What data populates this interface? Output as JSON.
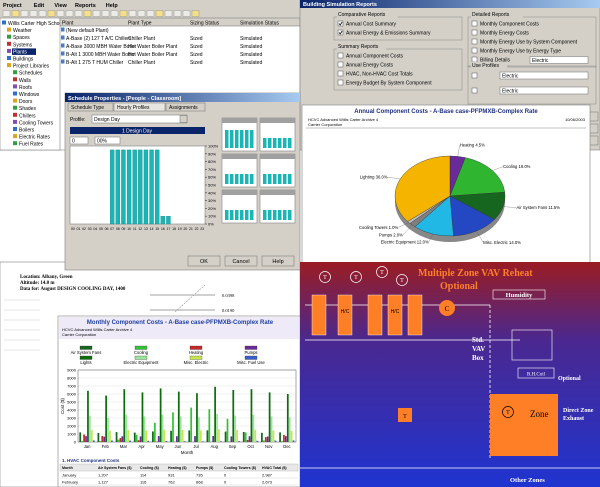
{
  "main_window": {
    "menu": [
      "Project",
      "Edit",
      "View",
      "Reports",
      "Help"
    ],
    "tree": [
      "Willis Carter High School",
      "Weather",
      "Spaces",
      "Systems",
      "Plants",
      "Buildings",
      "Project Libraries",
      "Schedules",
      "Walls",
      "Roofs",
      "Windows",
      "Doors",
      "Shades",
      "Chillers",
      "Cooling Towers",
      "Boilers",
      "Electric Rates",
      "Fuel Rates"
    ],
    "selected_tree_item": 4,
    "columns": [
      "Plant",
      "Plant Type",
      "Sizing Status",
      "Simulation Status"
    ],
    "rows": [
      [
        "(New default Plant)"
      ],
      [
        "A-Base (2) 127 T A/C Chillers",
        "Chiller Plant",
        "Sized",
        "Simulated"
      ],
      [
        "A-Base 3000 MBH Water Boiler",
        "Hot Water Boiler Plant",
        "Sized",
        "Simulated"
      ],
      [
        "B-Alt 1 3000 MBH Water Boiler",
        "Hot Water Boiler Plant",
        "Sized",
        "Simulated"
      ],
      [
        "B-Alt 1 275 T HUM Chiller",
        "Chiller Plant",
        "Sized",
        "Simulated"
      ]
    ]
  },
  "reports_dialog": {
    "title": "Building Simulation Reports",
    "groups": [
      {
        "title": "Comparative Reports",
        "items": [
          "Annual Cost Summary",
          "Annual Energy & Emissions Summary"
        ],
        "checked": [
          true,
          true
        ]
      },
      {
        "title": "Summary Reports",
        "items": [
          "Annual Component Costs",
          "Annual Energy Costs",
          "HVAC, Non-HVAC Cost Totals",
          "Energy Budget By System Component"
        ],
        "checked": [
          false,
          false,
          false,
          false
        ]
      },
      {
        "title": "Detailed Reports",
        "items": [
          "Monthly Component Costs",
          "Monthly Energy Costs",
          "Monthly Energy Use by System Component",
          "Monthly Energy Use by Energy Type",
          "Billing Details"
        ],
        "checked": [
          false,
          false,
          false,
          false,
          false
        ]
      }
    ],
    "use_profiles_title": "Use Profiles",
    "dropdown": "Electric"
  },
  "pie_report": {
    "title": "Annual Component Costs - A-Base case-PFPMXB-Complex Rate",
    "subtitle_lines": [
      "HCVC Advanced Willis Carter Archive 4",
      "Carrier Corporation"
    ],
    "date": "10/06/2003",
    "slices": [
      {
        "label": "Heating 4.5%",
        "value": 4.5,
        "color": "#6a2a9a"
      },
      {
        "label": "Cooling 19.0%",
        "value": 19.0,
        "color": "#2fb52f"
      },
      {
        "label": "Air System Fans 11.5%",
        "value": 11.5,
        "color": "#17661f"
      },
      {
        "label": "Misc. Electric 14.0%",
        "value": 14.0,
        "color": "#2447c4"
      },
      {
        "label": "Electric Equipment 12.0%",
        "value": 12.0,
        "color": "#22b8e6"
      },
      {
        "label": "Pumps 2.0%",
        "value": 2.0,
        "color": "#7f7f7f"
      },
      {
        "label": "Cooling Towers 1.0%",
        "value": 1.0,
        "color": "#c0c0c0"
      },
      {
        "label": "Lighting 36.0%",
        "value": 36.0,
        "color": "#f4b400"
      }
    ]
  },
  "schedule_dialog": {
    "title": "Schedule Properties - [People - Classroom]",
    "tabs": [
      "Schedule Type",
      "Hourly Profiles",
      "Assignments"
    ],
    "profile_label": "Profile:",
    "profile": "Design Day",
    "profile_header": "1 Design Day",
    "hour_field": "0",
    "percent_field": "00%",
    "ylim": [
      0,
      100
    ],
    "yticks": [
      {
        "value": 100,
        "label": "100%"
      },
      {
        "value": 90,
        "label": "90%"
      },
      {
        "value": 80,
        "label": "80%"
      },
      {
        "value": 70,
        "label": "70%"
      },
      {
        "value": 60,
        "label": "60%"
      },
      {
        "value": 50,
        "label": "50%"
      },
      {
        "value": 40,
        "label": "40%"
      },
      {
        "value": 30,
        "label": "30%"
      },
      {
        "value": 20,
        "label": "20%"
      },
      {
        "value": 10,
        "label": "10%"
      },
      {
        "value": 0,
        "label": "0%"
      }
    ],
    "hours": [
      "00",
      "01",
      "02",
      "03",
      "04",
      "05",
      "06",
      "07",
      "08",
      "09",
      "10",
      "11",
      "12",
      "13",
      "14",
      "15",
      "16",
      "17",
      "18",
      "19",
      "20",
      "21",
      "22",
      "23"
    ],
    "values": [
      0,
      0,
      0,
      0,
      0,
      0,
      0,
      95,
      95,
      95,
      95,
      95,
      95,
      95,
      95,
      95,
      10,
      10,
      0,
      0,
      0,
      0,
      0,
      0
    ],
    "buttons": [
      "OK",
      "Cancel",
      "Help"
    ]
  },
  "design_sheet": {
    "lines": [
      "Location: Albany, Green",
      "Altitude: 14.0 m",
      "Data for: August DESIGN COOLING DAY, 1400"
    ],
    "readings": [
      "0.0398",
      "0.0190"
    ]
  },
  "bar_report": {
    "title": "Monthly Component Costs - A-Base case-PFPMXB-Complex Rate",
    "subtitle_lines": [
      "HCVC Advanced Willis Carter Archive 4",
      "Carrier Corporation"
    ],
    "y_label": "Cost ($)",
    "x_label": "Month",
    "categories": [
      "Jan",
      "Feb",
      "Mar",
      "Apr",
      "May",
      "Jun",
      "Jul",
      "Aug",
      "Sep",
      "Oct",
      "Nov",
      "Dec"
    ],
    "ylim": [
      0,
      9000
    ],
    "yticks": [
      0,
      1000,
      2000,
      3000,
      4000,
      5000,
      6000,
      7000,
      8000,
      9000
    ],
    "series": [
      {
        "name": "Air System Fans",
        "color": "#17661f",
        "values": [
          1207,
          1127,
          1240,
          1180,
          1320,
          1400,
          1450,
          1460,
          1300,
          1250,
          1150,
          1200
        ]
      },
      {
        "name": "Cooling",
        "color": "#36c236",
        "values": [
          114,
          116,
          300,
          900,
          2400,
          3700,
          4300,
          4100,
          2900,
          1200,
          200,
          110
        ]
      },
      {
        "name": "Heating",
        "color": "#c62828",
        "values": [
          931,
          762,
          500,
          220,
          60,
          10,
          0,
          0,
          40,
          260,
          600,
          880
        ]
      },
      {
        "name": "Pumps",
        "color": "#6a2a9a",
        "values": [
          735,
          668,
          720,
          700,
          740,
          720,
          740,
          750,
          700,
          720,
          690,
          730
        ]
      },
      {
        "name": "Lights",
        "color": "#0b6e0b",
        "values": [
          6400,
          5800,
          6600,
          6200,
          6700,
          6300,
          6100,
          6900,
          6500,
          6600,
          6200,
          6000
        ]
      },
      {
        "name": "Electric Equipment",
        "color": "#9be59b",
        "values": [
          3300,
          3000,
          3400,
          3200,
          3400,
          3200,
          3100,
          3500,
          3300,
          3400,
          3200,
          3100
        ]
      },
      {
        "name": "Misc. Electric",
        "color": "#c8e64c",
        "values": [
          1500,
          1400,
          1500,
          1450,
          1550,
          1500,
          1450,
          1600,
          1500,
          1520,
          1450,
          1400
        ]
      },
      {
        "name": "Misc. Fuel Use",
        "color": "#3a5fcd",
        "values": [
          200,
          190,
          180,
          150,
          120,
          100,
          90,
          90,
          110,
          150,
          180,
          200
        ]
      }
    ],
    "table_title": "1. HVAC Component Costs",
    "table_columns": [
      "Month",
      "Air System Fans ($)",
      "Cooling ($)",
      "Heating ($)",
      "Pumps ($)",
      "Cooling Towers ($)",
      "HVAC Total ($)"
    ],
    "table_rows": [
      [
        "January",
        "1,207",
        "114",
        "931",
        "735",
        "0",
        "2,987"
      ],
      [
        "February",
        "1,127",
        "116",
        "762",
        "668",
        "0",
        "2,673"
      ]
    ]
  },
  "diagram": {
    "title": "Multiple Zone  VAV Reheat",
    "subtitle": "Optional",
    "humidity": "Humidity",
    "vav_box": [
      "Std.",
      "VAV",
      "Box"
    ],
    "rh_coil": "R.H.Coil",
    "optional": "Optional",
    "zone": "Zone",
    "exhaust": [
      "Direct Zone",
      "Exhaust"
    ],
    "other_zones": "Other Zones",
    "sensor": "T",
    "fan": "C",
    "coil": "H/C"
  }
}
